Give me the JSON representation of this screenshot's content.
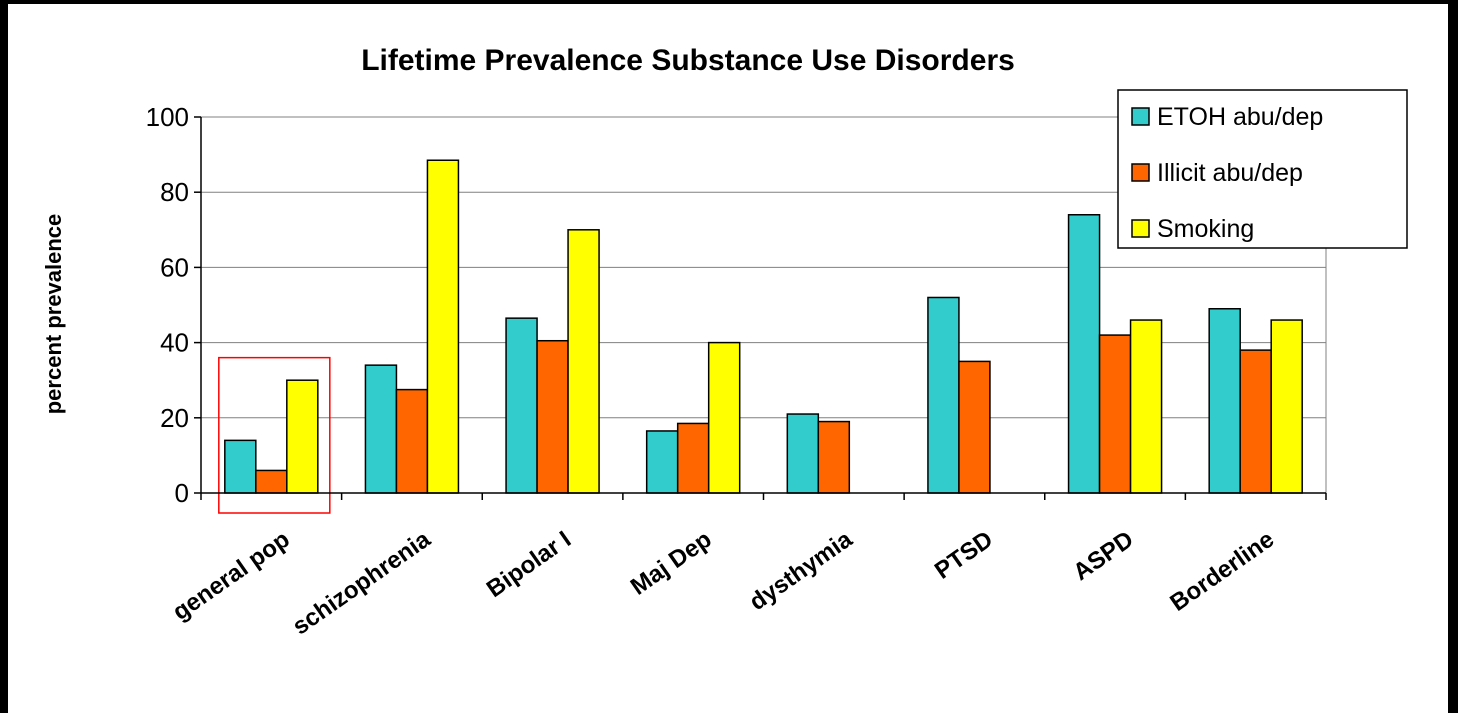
{
  "chart_data": {
    "type": "bar",
    "title": "Lifetime Prevalence Substance Use Disorders",
    "xlabel": "",
    "ylabel": "percent prevalence",
    "ylim": [
      0,
      100
    ],
    "yticks": [
      "0",
      "20",
      "40",
      "60",
      "80",
      "100"
    ],
    "grid": true,
    "legend_position": "top-right",
    "categories": [
      "general pop",
      "schizophrenia",
      "Bipolar I",
      "Maj Dep",
      "dysthymia",
      "PTSD",
      "ASPD",
      "Borderline"
    ],
    "series": [
      {
        "name": "ETOH abu/dep",
        "color": "#33cccc",
        "values": [
          14,
          34,
          46.5,
          16.5,
          21,
          52,
          74,
          49
        ]
      },
      {
        "name": "Illicit abu/dep",
        "color": "#ff6600",
        "values": [
          6,
          27.5,
          40.5,
          18.5,
          19,
          35,
          42,
          38
        ]
      },
      {
        "name": "Smoking",
        "color": "#ffff00",
        "values": [
          30,
          88.5,
          70,
          40,
          null,
          null,
          46,
          46
        ]
      }
    ],
    "highlight_category": "general pop",
    "highlight_color": "#ff0000"
  }
}
